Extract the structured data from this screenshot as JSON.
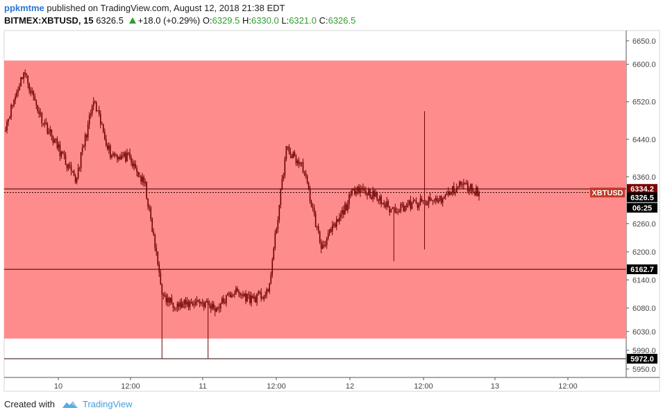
{
  "header": {
    "author": "ppkmtme",
    "published_text": "published on TradingView.com, August 12, 2018 21:38 EDT",
    "symbol": "BITMEX:XBTUSD, 15",
    "last": "6326.5",
    "change": "+18.0 (+0.29%)",
    "o_label": "O:",
    "o_value": "6329.5",
    "h_label": "H:",
    "h_value": "6330.0",
    "l_label": "L:",
    "l_value": "6321.0",
    "c_label": "C:",
    "c_value": "6326.5"
  },
  "footer": {
    "created_with": "Created with",
    "brand": "TradingView"
  },
  "colors": {
    "zone": "#ff8c8c",
    "candle": "#6b0000",
    "tag_dark": "#7a0000",
    "tag_symbol": "#c0392b"
  },
  "chart_data": {
    "type": "line",
    "title": "",
    "xlabel": "",
    "ylabel": "",
    "x_tick_labels": [
      "10",
      "12:00",
      "11",
      "12:00",
      "12",
      "12:00",
      "13",
      "12:00"
    ],
    "y_ticks": [
      "6650.0",
      "6600.0",
      "6520.0",
      "6440.0",
      "6360.0",
      "6260.0",
      "6200.0",
      "6140.0",
      "6080.0",
      "6030.0",
      "5990.0",
      "5950.0"
    ],
    "ylim": [
      5932,
      6672
    ],
    "zone": {
      "top": 6608,
      "bottom": 6015
    },
    "horizontal_lines": [
      {
        "price": 6334.2,
        "label": "6334.2"
      },
      {
        "price": 6162.7,
        "label": "6162.7"
      },
      {
        "price": 5972.0,
        "label": "5972.0"
      }
    ],
    "last_price_label": "6326.5",
    "symbol_label": "XBTUSD",
    "countdown_label": "06:25",
    "series": [
      {
        "x": [
          "Aug 9 18:00",
          "Aug 9 21:00",
          "Aug 10 00:00",
          "Aug 10 03:00",
          "Aug 10 06:00",
          "Aug 10 09:00",
          "Aug 10 12:00",
          "Aug 10 15:00",
          "Aug 10 18:00",
          "Aug 10 19:30",
          "Aug 10 21:00",
          "Aug 11 00:00",
          "Aug 11 03:00",
          "Aug 11 06:00",
          "Aug 11 09:00",
          "Aug 11 12:00",
          "Aug 11 12:30",
          "Aug 11 15:00",
          "Aug 11 18:00",
          "Aug 11 21:00",
          "Aug 12 00:00",
          "Aug 12 03:00",
          "Aug 12 06:00",
          "Aug 12 09:00",
          "Aug 12 12:00",
          "Aug 12 15:00",
          "Aug 12 18:00",
          "Aug 12 21:30"
        ],
        "values": [
          6470,
          6585,
          6490,
          6420,
          6350,
          6520,
          6410,
          6400,
          6340,
          6100,
          6085,
          6095,
          6080,
          6115,
          6100,
          6110,
          6420,
          6380,
          6210,
          6270,
          6340,
          6320,
          6290,
          6300,
          6305,
          6315,
          6345,
          6326.5
        ]
      }
    ]
  }
}
